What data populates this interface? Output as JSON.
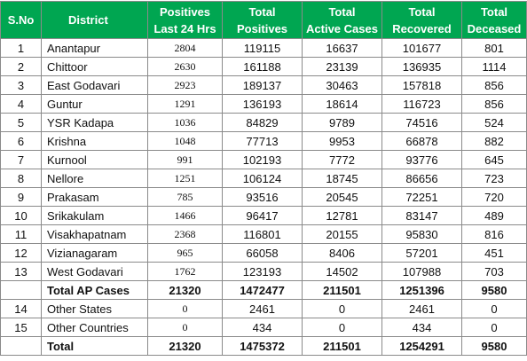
{
  "table": {
    "header": [
      [
        "S.No"
      ],
      [
        "District"
      ],
      [
        "Positives",
        "Last 24 Hrs"
      ],
      [
        "Total",
        "Positives"
      ],
      [
        "Total",
        "Active Cases"
      ],
      [
        "Total",
        "Recovered"
      ],
      [
        "Total",
        "Deceased"
      ]
    ],
    "rows": [
      {
        "sno": "1",
        "district": "Anantapur",
        "values": [
          2804,
          119115,
          16637,
          101677,
          801
        ]
      },
      {
        "sno": "2",
        "district": "Chittoor",
        "values": [
          2630,
          161188,
          23139,
          136935,
          1114
        ]
      },
      {
        "sno": "3",
        "district": "East Godavari",
        "values": [
          2923,
          189137,
          30463,
          157818,
          856
        ]
      },
      {
        "sno": "4",
        "district": "Guntur",
        "values": [
          1291,
          136193,
          18614,
          116723,
          856
        ]
      },
      {
        "sno": "5",
        "district": "YSR Kadapa",
        "values": [
          1036,
          84829,
          9789,
          74516,
          524
        ]
      },
      {
        "sno": "6",
        "district": "Krishna",
        "values": [
          1048,
          77713,
          9953,
          66878,
          882
        ]
      },
      {
        "sno": "7",
        "district": "Kurnool",
        "values": [
          991,
          102193,
          7772,
          93776,
          645
        ]
      },
      {
        "sno": "8",
        "district": "Nellore",
        "values": [
          1251,
          106124,
          18745,
          86656,
          723
        ]
      },
      {
        "sno": "9",
        "district": "Prakasam",
        "values": [
          785,
          93516,
          20545,
          72251,
          720
        ]
      },
      {
        "sno": "10",
        "district": "Srikakulam",
        "values": [
          1466,
          96417,
          12781,
          83147,
          489
        ]
      },
      {
        "sno": "11",
        "district": "Visakhapatnam",
        "values": [
          2368,
          116801,
          20155,
          95830,
          816
        ]
      },
      {
        "sno": "12",
        "district": "Vizianagaram",
        "values": [
          965,
          66058,
          8406,
          57201,
          451
        ]
      },
      {
        "sno": "13",
        "district": "West Godavari",
        "values": [
          1762,
          123193,
          14502,
          107988,
          703
        ]
      },
      {
        "district": "Total AP Cases",
        "values": [
          21320,
          1472477,
          211501,
          1251396,
          9580
        ],
        "total": true
      },
      {
        "sno": "14",
        "district": "Other States",
        "values": [
          0,
          2461,
          0,
          2461,
          0
        ]
      },
      {
        "sno": "15",
        "district": "Other Countries",
        "values": [
          0,
          434,
          0,
          434,
          0
        ]
      },
      {
        "district": "Total",
        "values": [
          21320,
          1475372,
          211501,
          1254291,
          9580
        ],
        "total": true
      }
    ]
  }
}
